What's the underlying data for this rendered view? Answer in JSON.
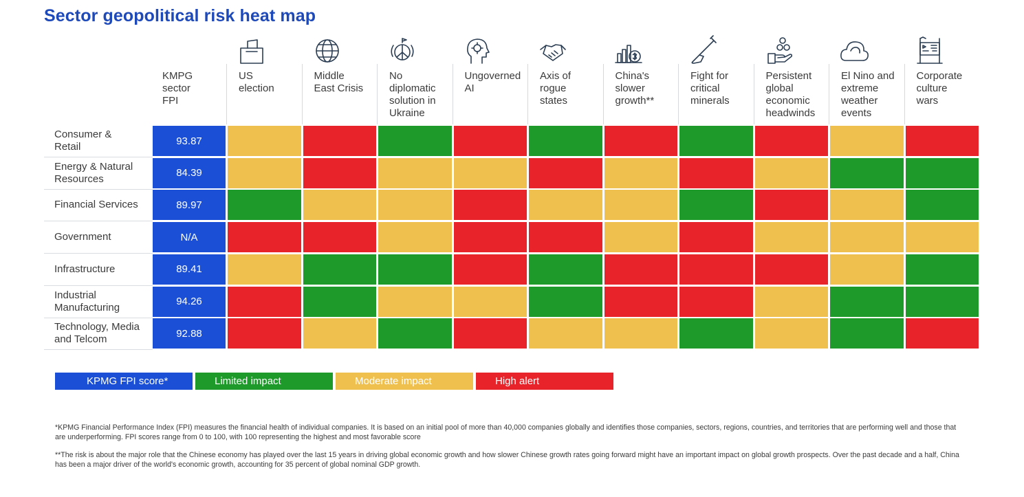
{
  "chart_data": {
    "type": "heatmap",
    "title": "Sector geopolitical risk heat map",
    "fpi_header": "KMPG\nsector\nFPI",
    "columns": [
      {
        "label": "US\nelection",
        "icon": "ballot-box-icon"
      },
      {
        "label": "Middle\nEast Crisis",
        "icon": "globe-icon"
      },
      {
        "label": "No\ndiplomatic\nsolution in\nUkraine",
        "icon": "peace-globe-icon"
      },
      {
        "label": "Ungoverned\nAI",
        "icon": "ai-head-icon"
      },
      {
        "label": "Axis of\nrogue\nstates",
        "icon": "handshake-icon"
      },
      {
        "label": "China's\nslower\ngrowth**",
        "icon": "coins-bar-icon"
      },
      {
        "label": "Fight for\ncritical\nminerals",
        "icon": "shovel-icon"
      },
      {
        "label": "Persistent\nglobal\neconomic\nheadwinds",
        "icon": "hand-coins-icon"
      },
      {
        "label": "El Nino and\nextreme\nweather\nevents",
        "icon": "cloud-icon"
      },
      {
        "label": "Corporate\nculture\nwars",
        "icon": "flag-board-icon"
      }
    ],
    "rows": [
      {
        "sector": "Consumer &\nRetail",
        "fpi": "93.87",
        "impacts": [
          "moderate",
          "high",
          "limited",
          "high",
          "limited",
          "high",
          "limited",
          "high",
          "moderate",
          "high"
        ]
      },
      {
        "sector": "Energy & Natural\nResources",
        "fpi": "84.39",
        "impacts": [
          "moderate",
          "high",
          "moderate",
          "moderate",
          "high",
          "moderate",
          "high",
          "moderate",
          "limited",
          "limited"
        ]
      },
      {
        "sector": "Financial Services",
        "fpi": "89.97",
        "impacts": [
          "limited",
          "moderate",
          "moderate",
          "high",
          "moderate",
          "moderate",
          "limited",
          "high",
          "moderate",
          "limited"
        ]
      },
      {
        "sector": "Government",
        "fpi": "N/A",
        "impacts": [
          "high",
          "high",
          "moderate",
          "high",
          "high",
          "moderate",
          "high",
          "moderate",
          "moderate",
          "moderate"
        ]
      },
      {
        "sector": "Infrastructure",
        "fpi": "89.41",
        "impacts": [
          "moderate",
          "limited",
          "limited",
          "high",
          "limited",
          "high",
          "high",
          "high",
          "moderate",
          "limited"
        ]
      },
      {
        "sector": "Industrial\nManufacturing",
        "fpi": "94.26",
        "impacts": [
          "high",
          "limited",
          "moderate",
          "moderate",
          "limited",
          "high",
          "high",
          "moderate",
          "limited",
          "limited"
        ]
      },
      {
        "sector": "Technology, Media\nand Telcom",
        "fpi": "92.88",
        "impacts": [
          "high",
          "moderate",
          "limited",
          "high",
          "moderate",
          "moderate",
          "limited",
          "moderate",
          "limited",
          "high"
        ]
      }
    ],
    "legend": [
      {
        "key": "fpi",
        "label": "KPMG FPI score*",
        "color": "#1a4fd6"
      },
      {
        "key": "limited",
        "label": "Limited impact",
        "color": "#1e9a2b"
      },
      {
        "key": "moderate",
        "label": "Moderate impact",
        "color": "#f0c04e"
      },
      {
        "key": "high",
        "label": "High alert",
        "color": "#e8232a"
      }
    ]
  },
  "footnotes": [
    "*KPMG Financial Performance Index (FPI) measures the financial health of individual companies. It is based on an initial pool of more than 40,000 companies globally and identifies those companies, sectors, regions, countries, and territories that are performing well and those that are underperforming. FPI scores range from 0 to 100, with 100 representing the highest and most favorable score",
    "**The risk is about the major role that the Chinese economy has played over the last 15 years in driving global economic growth and how slower Chinese growth rates going forward might have an important impact on global growth prospects. Over the past decade and a half, China has been a major driver of the world's economic growth, accounting for 35 percent of global nominal GDP growth."
  ]
}
